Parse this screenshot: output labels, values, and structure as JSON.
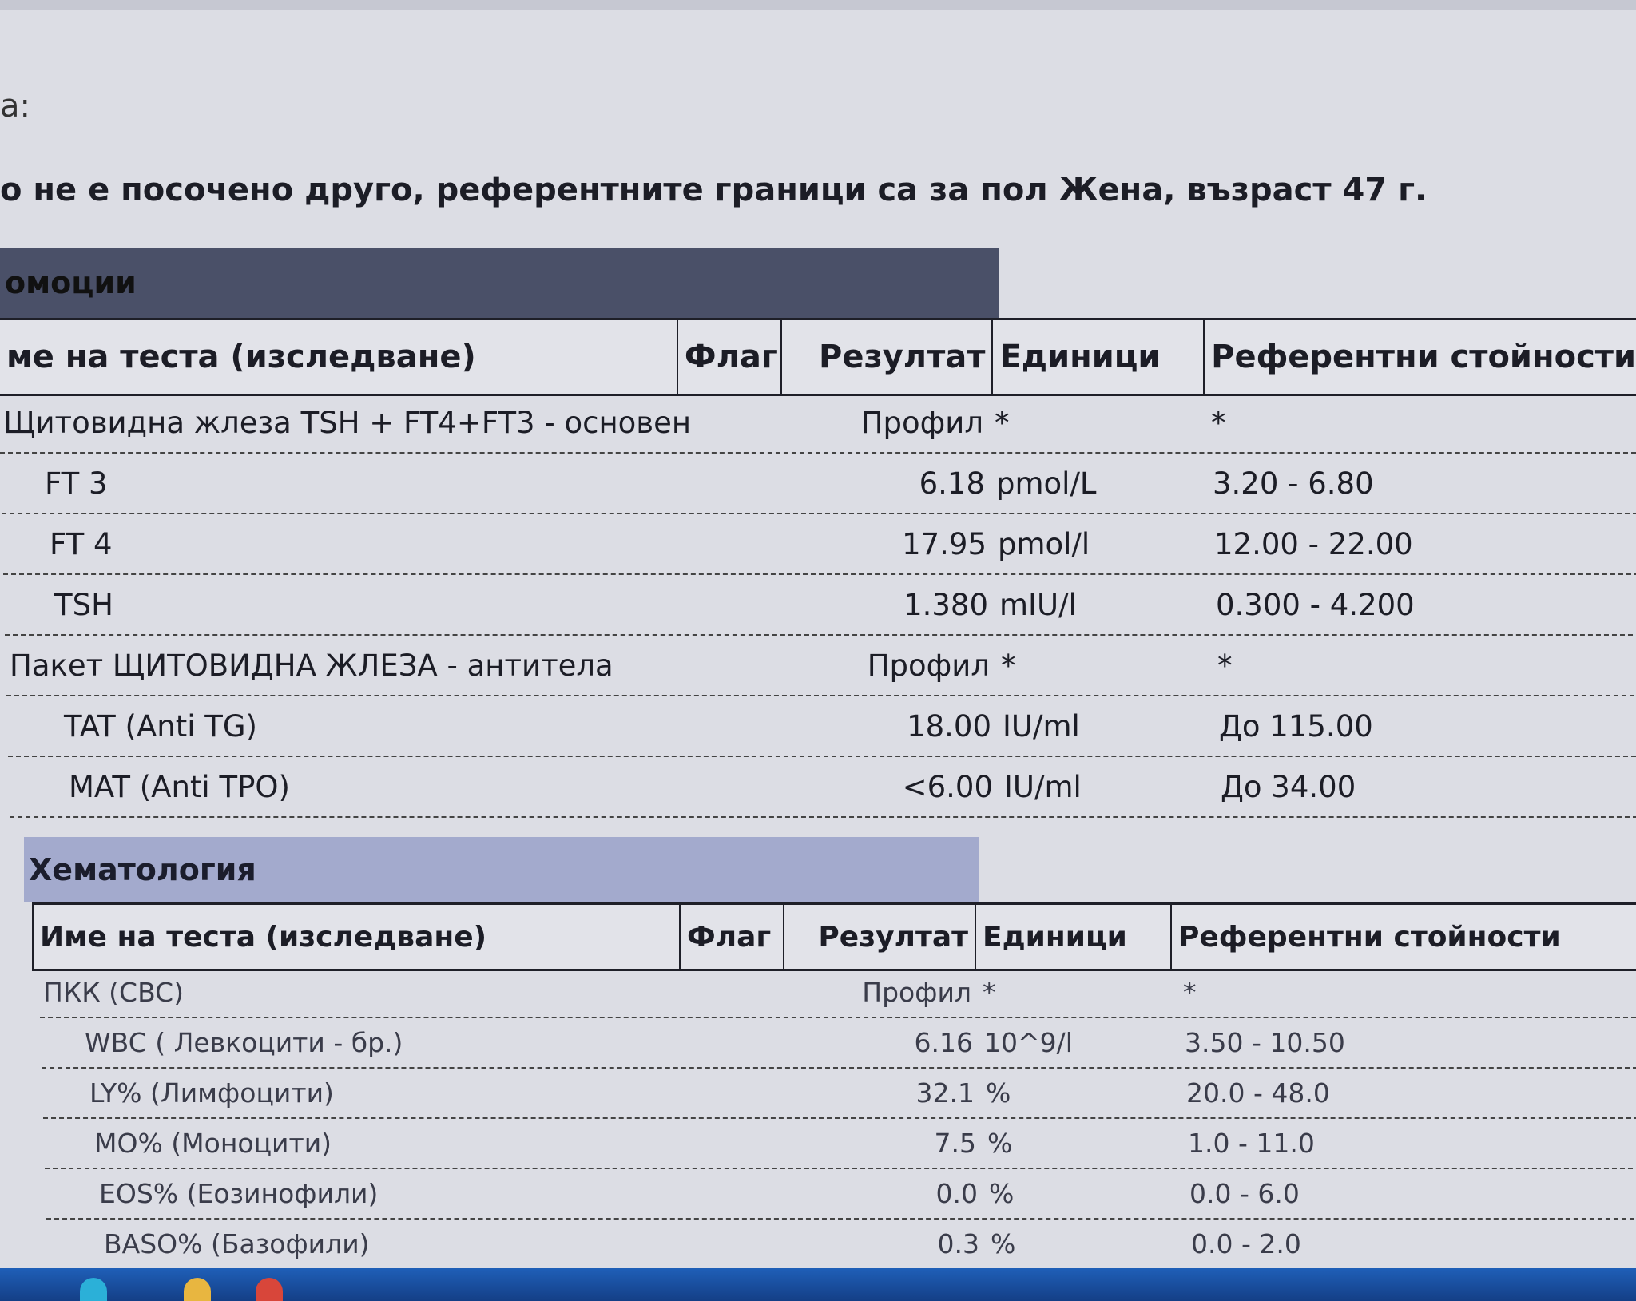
{
  "page": {
    "label_fragment": "а:",
    "note": "о не е посочено друго, референтните граници са за пол Жена, възраст 47 г."
  },
  "sections": [
    {
      "title": "омоции",
      "headers": {
        "name": "ме на теста (изследване)",
        "flag": "Флаг",
        "result": "Резултат",
        "units": "Единици",
        "reference": "Референтни стойности"
      },
      "rows": [
        {
          "name": "Щитовидна жлеза TSH + FT4+FT3 - основен",
          "flag": "",
          "result": "Профил",
          "units": "*",
          "reference": "*",
          "indent": 0
        },
        {
          "name": "FT 3",
          "flag": "",
          "result": "6.18",
          "units": "pmol/L",
          "reference": "3.20 - 6.80",
          "indent": 1
        },
        {
          "name": "FT 4",
          "flag": "",
          "result": "17.95",
          "units": "pmol/l",
          "reference": "12.00 - 22.00",
          "indent": 1
        },
        {
          "name": "TSH",
          "flag": "",
          "result": "1.380",
          "units": "mIU/l",
          "reference": "0.300 - 4.200",
          "indent": 1
        },
        {
          "name": "Пакет ЩИТОВИДНА ЖЛЕЗА - антитела",
          "flag": "",
          "result": "Профил",
          "units": "*",
          "reference": "*",
          "indent": 0
        },
        {
          "name": "TAT (Anti TG)",
          "flag": "",
          "result": "18.00",
          "units": "IU/ml",
          "reference": "До 115.00",
          "indent": 1
        },
        {
          "name": "MAT (Anti TPO)",
          "flag": "",
          "result": "<6.00",
          "units": "IU/ml",
          "reference": "До 34.00",
          "indent": 1
        }
      ]
    },
    {
      "title": "Хематология",
      "headers": {
        "name": "Име на теста (изследване)",
        "flag": "Флаг",
        "result": "Резултат",
        "units": "Единици",
        "reference": "Референтни стойности"
      },
      "rows": [
        {
          "name": "ПКК (CBC)",
          "flag": "",
          "result": "Профил",
          "units": "*",
          "reference": "*",
          "indent": 0
        },
        {
          "name": "WBC ( Левкоцити - бр.)",
          "flag": "",
          "result": "6.16",
          "units": "10^9/l",
          "reference": "3.50 - 10.50",
          "indent": 1
        },
        {
          "name": "LY% (Лимфоцити)",
          "flag": "",
          "result": "32.1",
          "units": "%",
          "reference": "20.0 - 48.0",
          "indent": 1
        },
        {
          "name": "MO% (Моноцити)",
          "flag": "",
          "result": "7.5",
          "units": "%",
          "reference": "1.0 - 11.0",
          "indent": 1
        },
        {
          "name": "EOS% (Еозинофили)",
          "flag": "",
          "result": "0.0",
          "units": "%",
          "reference": "0.0 - 6.0",
          "indent": 1
        },
        {
          "name": "BASO% (Базофили)",
          "flag": "",
          "result": "0.3",
          "units": "%",
          "reference": "0.0 - 2.0",
          "indent": 1
        }
      ]
    }
  ],
  "colors": {
    "section_dark": "#4a5068",
    "section_light": "#a3aacd",
    "taskbar": "#1f5fb8"
  }
}
